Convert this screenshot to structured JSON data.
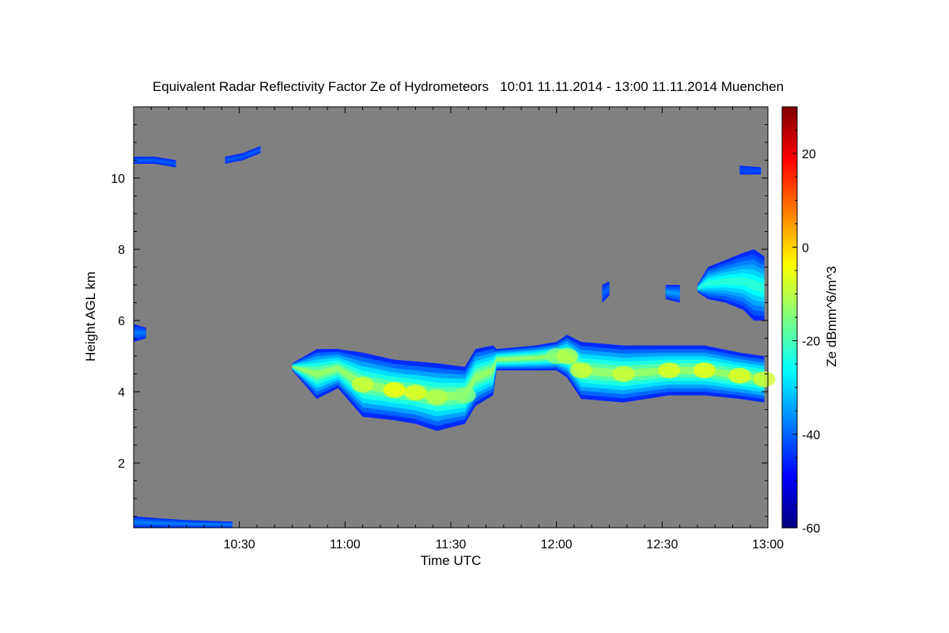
{
  "chart_data": {
    "type": "heatmap",
    "title": "Equivalent Radar Reflectivity Factor Ze of Hydrometeors   10:01 11.11.2014 - 13:00 11.11.2014 Muenchen",
    "xlabel": "Time UTC",
    "ylabel": "Height AGL km",
    "colorbar_label": "Ze dBmm^6/m^3",
    "x_range_minutes_after_10": [
      0,
      180
    ],
    "xticks": [
      {
        "min": 30,
        "label": "10:30"
      },
      {
        "min": 60,
        "label": "11:00"
      },
      {
        "min": 90,
        "label": "11:30"
      },
      {
        "min": 120,
        "label": "12:00"
      },
      {
        "min": 150,
        "label": "12:30"
      },
      {
        "min": 180,
        "label": "13:00"
      }
    ],
    "ylim": [
      0.18,
      12
    ],
    "yticks": [
      {
        "v": 2,
        "label": "2"
      },
      {
        "v": 4,
        "label": "4"
      },
      {
        "v": 6,
        "label": "6"
      },
      {
        "v": 8,
        "label": "8"
      },
      {
        "v": 10,
        "label": "10"
      }
    ],
    "clim": [
      -60,
      30
    ],
    "cticks": [
      {
        "v": 20,
        "label": "20"
      },
      {
        "v": 0,
        "label": "0"
      },
      {
        "v": -20,
        "label": "-20"
      },
      {
        "v": -40,
        "label": "-40"
      },
      {
        "v": -60,
        "label": "-60"
      }
    ],
    "colormap": "jet",
    "background_color": "#808080",
    "layers": [
      {
        "name": "main-cloud-layer",
        "edge_ze": -45,
        "points": [
          {
            "t": 45,
            "top": 4.8,
            "base": 4.6,
            "core": -35
          },
          {
            "t": 52,
            "top": 5.2,
            "base": 3.8,
            "core": -28
          },
          {
            "t": 58,
            "top": 5.2,
            "base": 4.1,
            "core": -22
          },
          {
            "t": 65,
            "top": 5.1,
            "base": 3.3,
            "core": -8
          },
          {
            "t": 74,
            "top": 4.9,
            "base": 3.2,
            "core": -4
          },
          {
            "t": 80,
            "top": 4.85,
            "base": 3.1,
            "core": -6
          },
          {
            "t": 86,
            "top": 4.8,
            "base": 2.9,
            "core": -10
          },
          {
            "t": 94,
            "top": 4.7,
            "base": 3.1,
            "core": -14
          },
          {
            "t": 97,
            "top": 5.2,
            "base": 3.6,
            "core": -18
          },
          {
            "t": 102,
            "top": 5.3,
            "base": 3.9,
            "core": -20
          },
          {
            "t": 103,
            "top": 5.2,
            "base": 4.6,
            "core": -20
          },
          {
            "t": 114,
            "top": 5.3,
            "base": 4.6,
            "core": -16
          },
          {
            "t": 120,
            "top": 5.4,
            "base": 4.6,
            "core": -14
          },
          {
            "t": 123,
            "top": 5.6,
            "base": 4.4,
            "core": -10
          },
          {
            "t": 127,
            "top": 5.4,
            "base": 3.8,
            "core": -8
          },
          {
            "t": 139,
            "top": 5.3,
            "base": 3.7,
            "core": -8
          },
          {
            "t": 152,
            "top": 5.3,
            "base": 3.9,
            "core": -6
          },
          {
            "t": 162,
            "top": 5.3,
            "base": 3.9,
            "core": -5
          },
          {
            "t": 172,
            "top": 5.1,
            "base": 3.8,
            "core": -6
          },
          {
            "t": 179,
            "top": 5.0,
            "base": 3.7,
            "core": -8
          }
        ]
      },
      {
        "name": "upper-cloud",
        "edge_ze": -45,
        "points": [
          {
            "t": 160,
            "top": 7.0,
            "base": 6.8,
            "core": -30
          },
          {
            "t": 163,
            "top": 7.5,
            "base": 6.6,
            "core": -22
          },
          {
            "t": 168,
            "top": 7.7,
            "base": 6.5,
            "core": -20
          },
          {
            "t": 173,
            "top": 7.9,
            "base": 6.3,
            "core": -18
          },
          {
            "t": 176,
            "top": 8.0,
            "base": 6.0,
            "core": -22
          },
          {
            "t": 179,
            "top": 7.8,
            "base": 6.0,
            "core": -25
          }
        ]
      },
      {
        "name": "cirrus-left",
        "edge_ze": -45,
        "points": [
          {
            "t": 0,
            "top": 10.6,
            "base": 10.4,
            "core": -40
          },
          {
            "t": 6,
            "top": 10.6,
            "base": 10.4,
            "core": -40
          },
          {
            "t": 12,
            "top": 10.5,
            "base": 10.3,
            "core": -42
          }
        ]
      },
      {
        "name": "cirrus-mid",
        "edge_ze": -45,
        "points": [
          {
            "t": 26,
            "top": 10.6,
            "base": 10.4,
            "core": -40
          },
          {
            "t": 31,
            "top": 10.7,
            "base": 10.5,
            "core": -40
          },
          {
            "t": 36,
            "top": 10.9,
            "base": 10.7,
            "core": -42
          }
        ]
      },
      {
        "name": "cirrus-right",
        "edge_ze": -45,
        "points": [
          {
            "t": 172,
            "top": 10.35,
            "base": 10.1,
            "core": -42
          },
          {
            "t": 178,
            "top": 10.3,
            "base": 10.1,
            "core": -42
          }
        ]
      },
      {
        "name": "mid-cell-left",
        "edge_ze": -45,
        "points": [
          {
            "t": 0,
            "top": 5.9,
            "base": 5.4,
            "core": -38
          },
          {
            "t": 3.5,
            "top": 5.8,
            "base": 5.5,
            "core": -38
          }
        ]
      },
      {
        "name": "small-cells-7km-a",
        "edge_ze": -45,
        "points": [
          {
            "t": 133,
            "top": 7.0,
            "base": 6.5,
            "core": -40
          },
          {
            "t": 135,
            "top": 7.1,
            "base": 6.7,
            "core": -40
          }
        ]
      },
      {
        "name": "small-cells-7km-b",
        "edge_ze": -45,
        "points": [
          {
            "t": 151,
            "top": 7.0,
            "base": 6.6,
            "core": -35
          },
          {
            "t": 155,
            "top": 7.0,
            "base": 6.5,
            "core": -35
          }
        ]
      },
      {
        "name": "ground-clutter",
        "edge_ze": -45,
        "points": [
          {
            "t": 0,
            "top": 0.5,
            "base": 0.18,
            "core": -35
          },
          {
            "t": 14,
            "top": 0.4,
            "base": 0.18,
            "core": -38
          },
          {
            "t": 28,
            "top": 0.35,
            "base": 0.18,
            "core": -40
          }
        ]
      }
    ]
  }
}
